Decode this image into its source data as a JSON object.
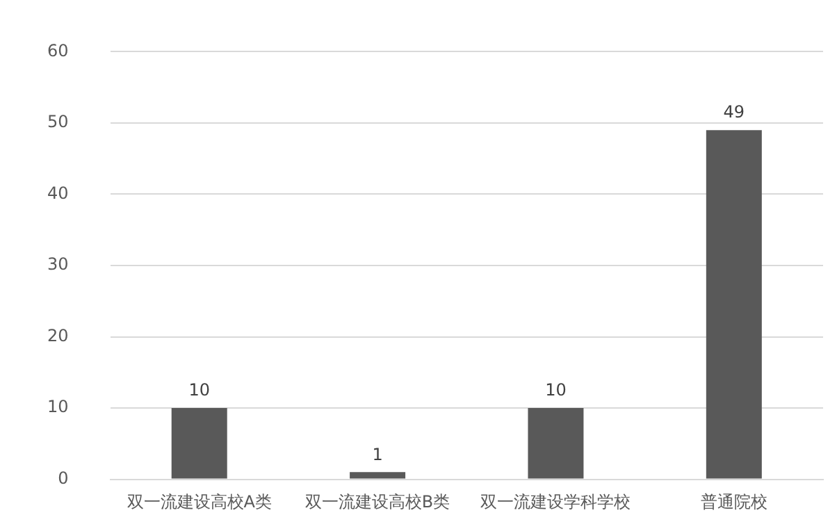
{
  "chart_data": {
    "type": "bar",
    "categories": [
      "双一流建设高校A类",
      "双一流建设高校B类",
      "双一流建设学科学校",
      "普通院校"
    ],
    "values": [
      10,
      1,
      10,
      49
    ],
    "color": "#595959",
    "ylim": [
      0,
      60
    ],
    "yticks": [
      0,
      10,
      20,
      30,
      40,
      50,
      60
    ],
    "grid": "y",
    "data_labels": true
  }
}
